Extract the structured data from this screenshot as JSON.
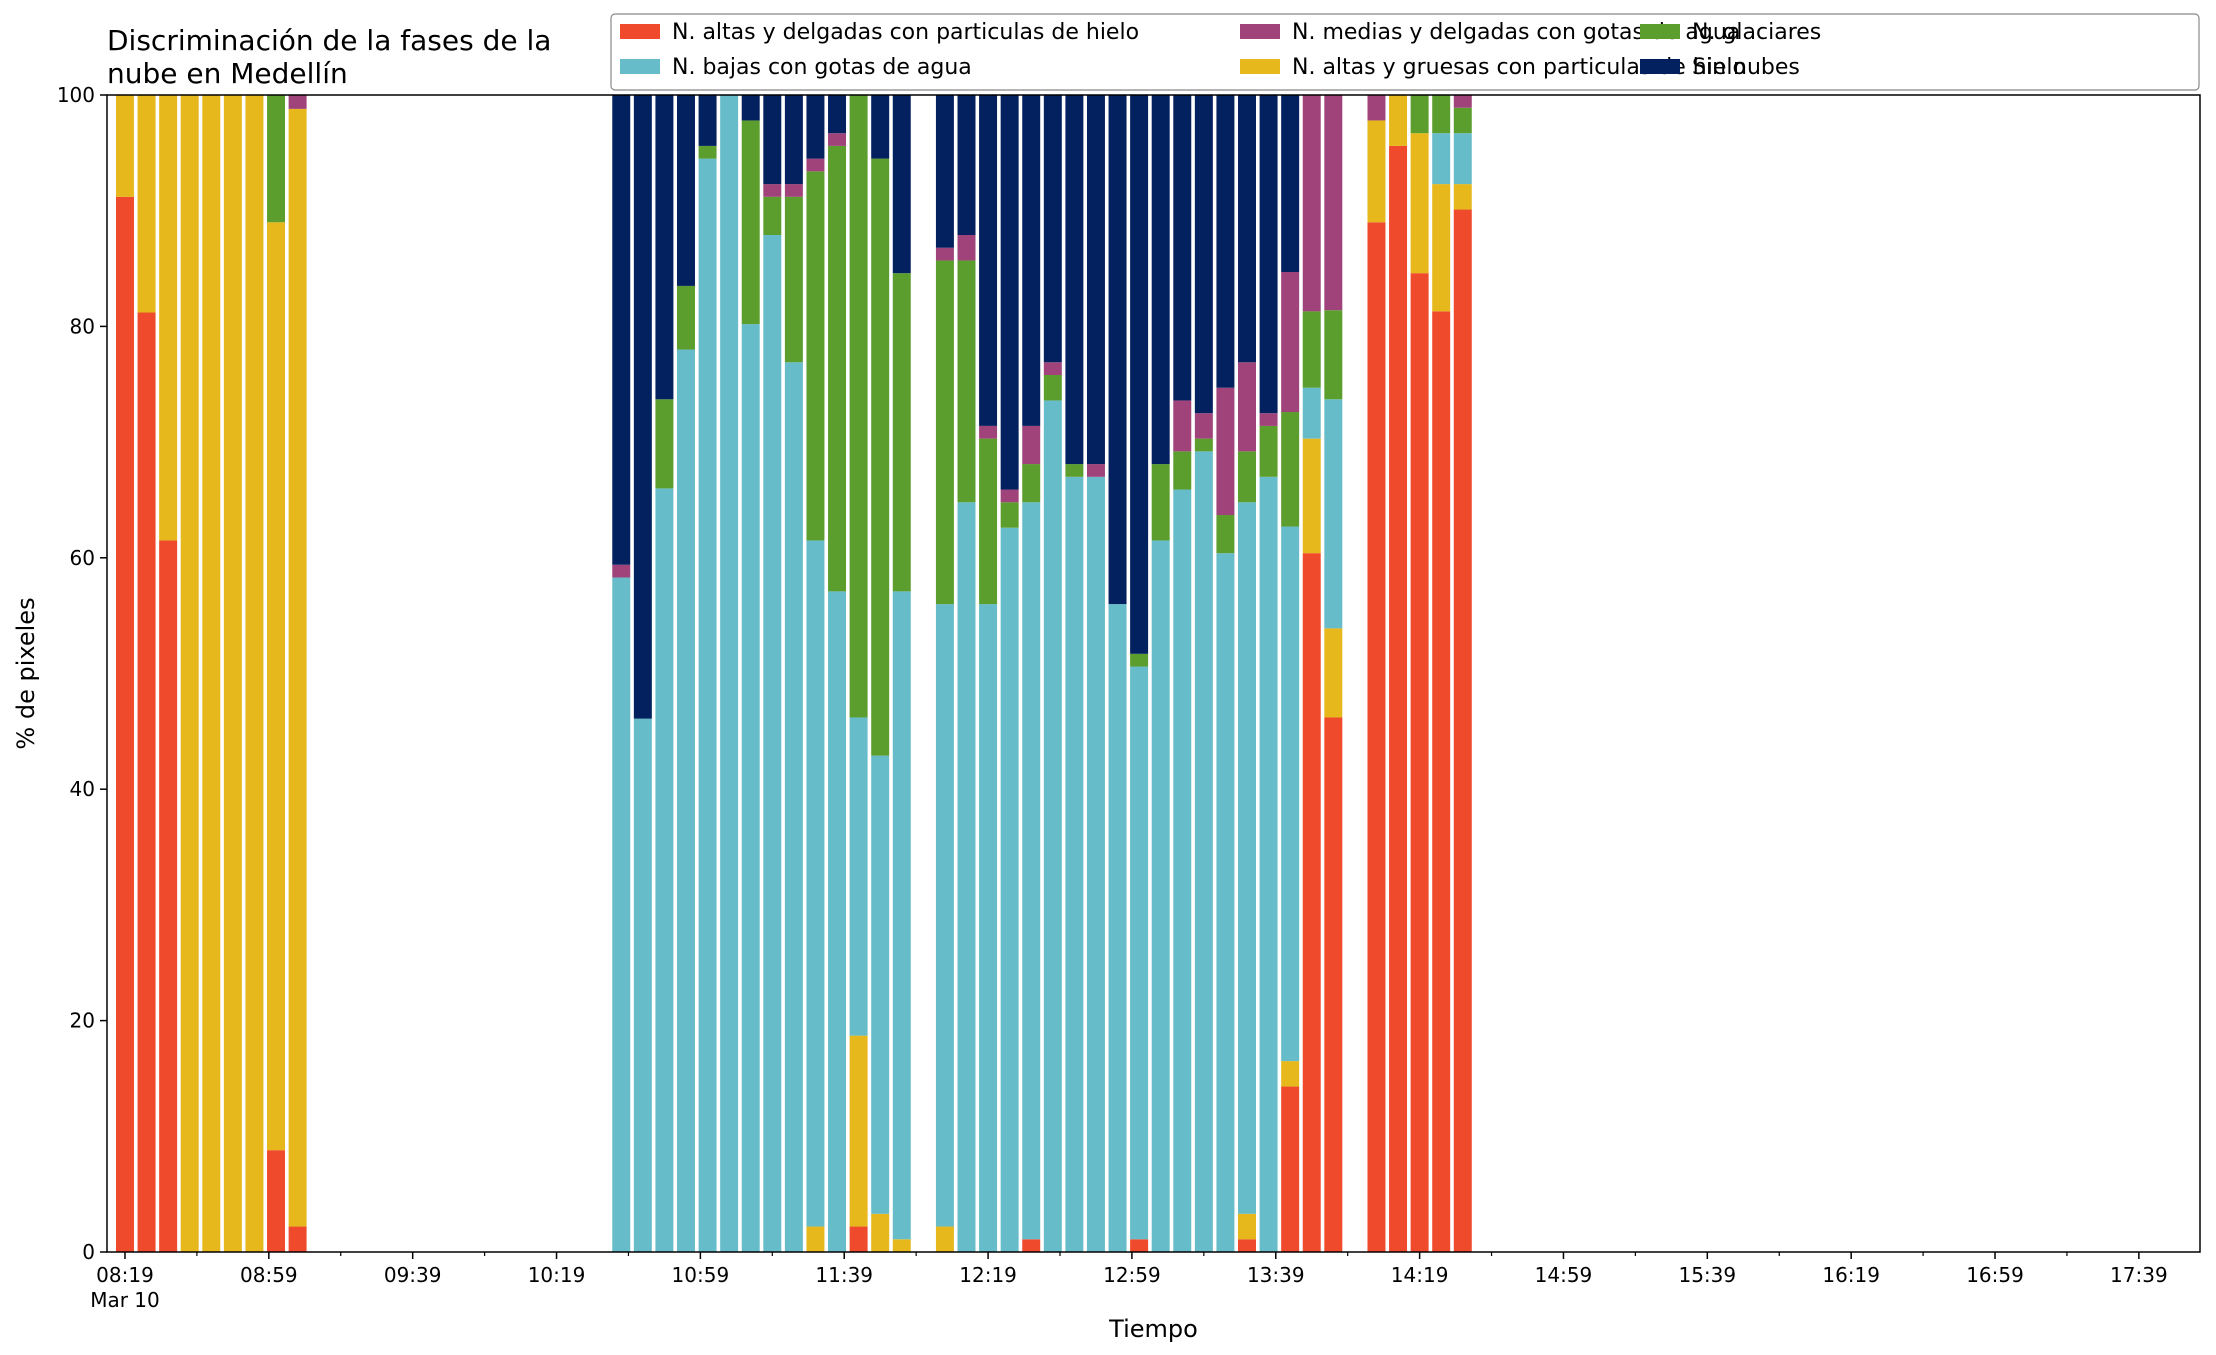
{
  "chart_data": {
    "type": "bar",
    "stacked": true,
    "title_lines": [
      "Discriminación de la fases de la",
      "nube en Medellín"
    ],
    "xlabel": "Tiempo",
    "ylabel": "% de pixeles",
    "ylim": [
      0,
      100
    ],
    "yticks": [
      0,
      20,
      40,
      60,
      80,
      100
    ],
    "x_major_ticks": [
      "08:19",
      "08:59",
      "09:39",
      "10:19",
      "10:59",
      "11:39",
      "12:19",
      "12:59",
      "13:39",
      "14:19",
      "14:59",
      "15:39",
      "16:19",
      "16:59",
      "17:39"
    ],
    "x_date_label": "Mar 10",
    "x_range": [
      "08:14",
      "17:56"
    ],
    "bar_width_minutes": 5,
    "grid": false,
    "legend_position": "top-right",
    "series": [
      {
        "name": "N. altas y delgadas con particulas de hielo",
        "color": "#EF4A2B"
      },
      {
        "name": "N. altas y gruesas con particulas de hielo",
        "color": "#E6B81C"
      },
      {
        "name": "N. bajas con gotas de agua",
        "color": "#67BCCA"
      },
      {
        "name": "N. glaciares",
        "color": "#5C9E2E"
      },
      {
        "name": "N. medias y delgadas con gotas de agua",
        "color": "#A0437B"
      },
      {
        "name": "Sin nubes",
        "color": "#03205F"
      }
    ],
    "legend_order": [
      0,
      2,
      4,
      1,
      3,
      5
    ],
    "bars": [
      {
        "time": "08:19",
        "values": [
          91.2,
          8.8,
          0,
          0,
          0,
          0
        ]
      },
      {
        "time": "08:25",
        "values": [
          81.2,
          18.8,
          0,
          0,
          0,
          0
        ]
      },
      {
        "time": "08:31",
        "values": [
          61.5,
          38.5,
          0,
          0,
          0,
          0
        ]
      },
      {
        "time": "08:37",
        "values": [
          0,
          100,
          0,
          0,
          0,
          0
        ]
      },
      {
        "time": "08:43",
        "values": [
          0,
          100,
          0,
          0,
          0,
          0
        ]
      },
      {
        "time": "08:49",
        "values": [
          0,
          100,
          0,
          0,
          0,
          0
        ]
      },
      {
        "time": "08:55",
        "values": [
          0,
          100,
          0,
          0,
          0,
          0
        ]
      },
      {
        "time": "09:01",
        "values": [
          8.8,
          80.2,
          0,
          11.0,
          0,
          0
        ]
      },
      {
        "time": "09:07",
        "values": [
          2.2,
          96.6,
          0,
          0,
          1.2,
          0
        ]
      },
      {
        "time": "10:37",
        "values": [
          0,
          0,
          58.3,
          0,
          1.1,
          40.6
        ]
      },
      {
        "time": "10:43",
        "values": [
          0,
          0,
          46.1,
          0,
          0,
          53.9
        ]
      },
      {
        "time": "10:49",
        "values": [
          0,
          0,
          66.0,
          7.7,
          0,
          26.3
        ]
      },
      {
        "time": "10:55",
        "values": [
          0,
          0,
          78.0,
          5.5,
          0,
          16.5
        ]
      },
      {
        "time": "11:01",
        "values": [
          0,
          0,
          94.5,
          1.1,
          0,
          4.4
        ]
      },
      {
        "time": "11:07",
        "values": [
          0,
          0,
          100,
          0,
          0,
          0
        ]
      },
      {
        "time": "11:13",
        "values": [
          0,
          0,
          80.2,
          17.6,
          0,
          2.2
        ]
      },
      {
        "time": "11:19",
        "values": [
          0,
          0,
          87.9,
          3.3,
          1.1,
          7.7
        ]
      },
      {
        "time": "11:25",
        "values": [
          0,
          0,
          76.9,
          14.3,
          1.1,
          7.7
        ]
      },
      {
        "time": "11:31",
        "values": [
          0,
          2.2,
          59.3,
          31.9,
          1.1,
          5.5
        ]
      },
      {
        "time": "11:37",
        "values": [
          0,
          0,
          57.1,
          38.5,
          1.1,
          3.3
        ]
      },
      {
        "time": "11:43",
        "values": [
          2.2,
          16.5,
          27.5,
          53.8,
          0,
          0
        ]
      },
      {
        "time": "11:49",
        "values": [
          0,
          3.3,
          39.6,
          51.6,
          0,
          5.5
        ]
      },
      {
        "time": "11:55",
        "values": [
          0,
          1.1,
          56.0,
          27.5,
          0,
          15.4
        ]
      },
      {
        "time": "12:07",
        "values": [
          0,
          2.2,
          53.8,
          29.7,
          1.1,
          13.2
        ]
      },
      {
        "time": "12:13",
        "values": [
          0,
          0,
          64.8,
          20.9,
          2.2,
          12.1
        ]
      },
      {
        "time": "12:19",
        "values": [
          0,
          0,
          56.0,
          14.3,
          1.1,
          28.6
        ]
      },
      {
        "time": "12:25",
        "values": [
          0,
          0,
          62.6,
          2.2,
          1.1,
          34.1
        ]
      },
      {
        "time": "12:31",
        "values": [
          1.1,
          0,
          63.7,
          3.3,
          3.3,
          28.6
        ]
      },
      {
        "time": "12:37",
        "values": [
          0,
          0,
          73.6,
          2.2,
          1.1,
          23.1
        ]
      },
      {
        "time": "12:43",
        "values": [
          0,
          0,
          67.0,
          1.1,
          0,
          31.9
        ]
      },
      {
        "time": "12:49",
        "values": [
          0,
          0,
          67.0,
          0,
          1.1,
          31.9
        ]
      },
      {
        "time": "12:55",
        "values": [
          0,
          0,
          56.0,
          0,
          0,
          44.0
        ]
      },
      {
        "time": "13:01",
        "values": [
          1.1,
          0,
          49.5,
          1.1,
          0,
          48.3
        ]
      },
      {
        "time": "13:07",
        "values": [
          0,
          0,
          61.5,
          6.6,
          0,
          31.9
        ]
      },
      {
        "time": "13:13",
        "values": [
          0,
          0,
          65.9,
          3.3,
          4.4,
          26.4
        ]
      },
      {
        "time": "13:19",
        "values": [
          0,
          0,
          69.2,
          1.1,
          2.2,
          27.5
        ]
      },
      {
        "time": "13:25",
        "values": [
          0,
          0,
          60.4,
          3.3,
          11.0,
          25.3
        ]
      },
      {
        "time": "13:31",
        "values": [
          1.1,
          2.2,
          61.5,
          4.4,
          7.7,
          23.1
        ]
      },
      {
        "time": "13:37",
        "values": [
          0,
          0,
          67.0,
          4.4,
          1.1,
          27.5
        ]
      },
      {
        "time": "13:43",
        "values": [
          14.3,
          2.2,
          46.2,
          9.9,
          12.1,
          15.3
        ]
      },
      {
        "time": "13:49",
        "values": [
          60.4,
          9.9,
          4.4,
          6.6,
          18.7,
          0
        ]
      },
      {
        "time": "13:55",
        "values": [
          46.2,
          7.7,
          19.8,
          7.7,
          18.6,
          0
        ]
      },
      {
        "time": "14:07",
        "values": [
          89.0,
          8.8,
          0,
          0,
          2.2,
          0
        ]
      },
      {
        "time": "14:13",
        "values": [
          95.6,
          4.4,
          0,
          0,
          0,
          0
        ]
      },
      {
        "time": "14:19",
        "values": [
          84.6,
          12.1,
          0,
          3.3,
          0,
          0
        ]
      },
      {
        "time": "14:25",
        "values": [
          81.3,
          11.0,
          4.4,
          3.3,
          0,
          0
        ]
      },
      {
        "time": "14:31",
        "values": [
          90.1,
          2.2,
          4.4,
          2.2,
          1.1,
          0
        ]
      }
    ]
  }
}
